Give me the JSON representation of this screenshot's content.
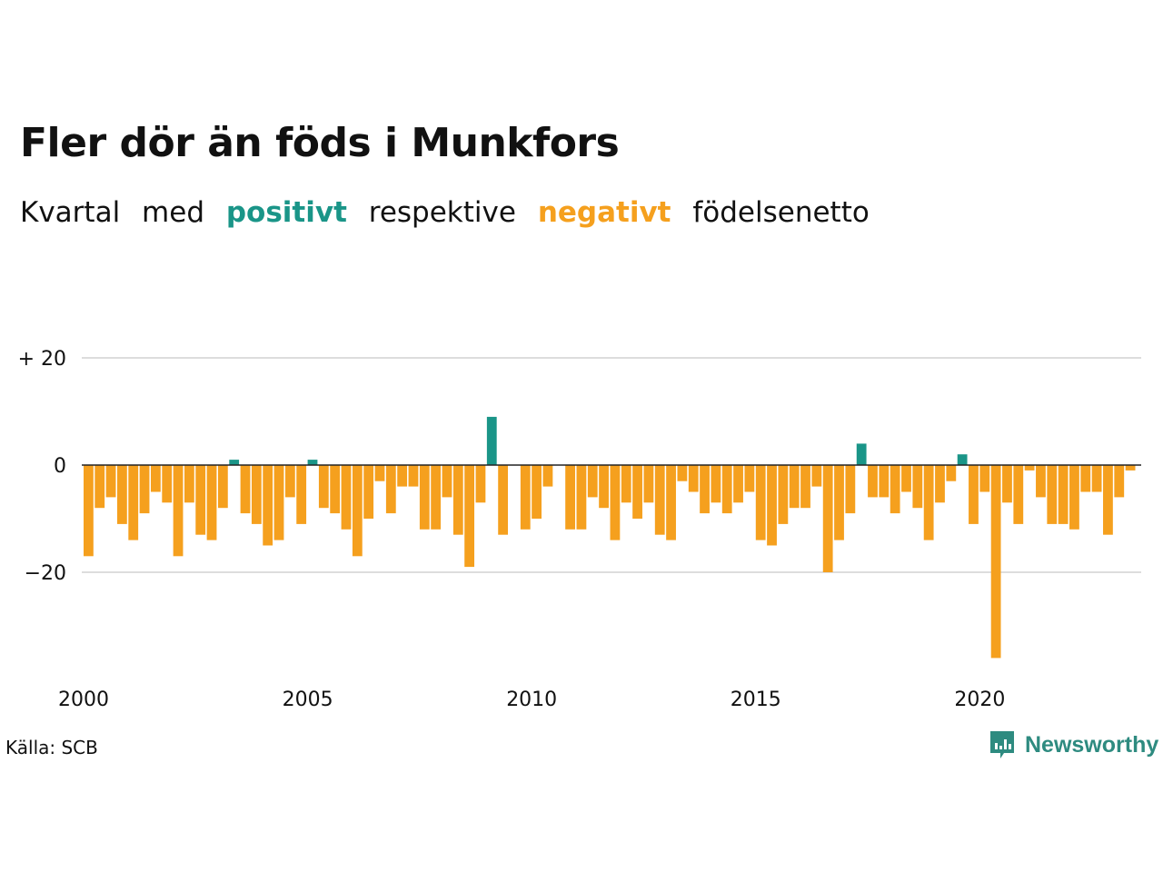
{
  "title": "Fler dör än föds i Munkfors",
  "subtitle": {
    "parts": [
      "Kvartal",
      "med",
      "positivt",
      "respektive",
      "negativt",
      "födelsenetto"
    ]
  },
  "colors": {
    "positive": "#1a9588",
    "negative": "#f5a01e",
    "grid": "#dddddd",
    "zero_line": "#222222",
    "brand": "#2e8b80"
  },
  "source": "Källa: SCB",
  "brand": {
    "name": "Newsworthy",
    "icon": "newsworthy-logo-icon"
  },
  "chart_data": {
    "type": "bar",
    "x_ticks": [
      "2000",
      "2005",
      "2010",
      "2015",
      "2020"
    ],
    "y_ticks": [
      {
        "value": 20,
        "label": "+ 20"
      },
      {
        "value": 0,
        "label": "0"
      },
      {
        "value": -20,
        "label": "−20"
      }
    ],
    "ylim": [
      -38,
      24
    ],
    "grid": true,
    "start_year": 2000,
    "start_quarter": 1,
    "values": [
      -17,
      -8,
      -6,
      -11,
      -14,
      -9,
      -5,
      -7,
      -17,
      -7,
      -13,
      -14,
      -8,
      1,
      -9,
      -11,
      -15,
      -14,
      -6,
      -11,
      1,
      -8,
      -9,
      -12,
      -17,
      -10,
      -3,
      -9,
      -4,
      -4,
      -12,
      -12,
      -6,
      -13,
      -19,
      -7,
      9,
      -13,
      0,
      -12,
      -10,
      -4,
      0,
      -12,
      -12,
      -6,
      -8,
      -14,
      -7,
      -10,
      -7,
      -13,
      -14,
      -3,
      -5,
      -9,
      -7,
      -9,
      -7,
      -5,
      -14,
      -15,
      -11,
      -8,
      -8,
      -4,
      -20,
      -14,
      -9,
      4,
      -6,
      -6,
      -9,
      -5,
      -8,
      -14,
      -7,
      -3,
      2,
      -11,
      -5,
      -36,
      -7,
      -11,
      -1,
      -6,
      -11,
      -11,
      -12,
      -5,
      -5,
      -13,
      -6,
      -1
    ]
  }
}
